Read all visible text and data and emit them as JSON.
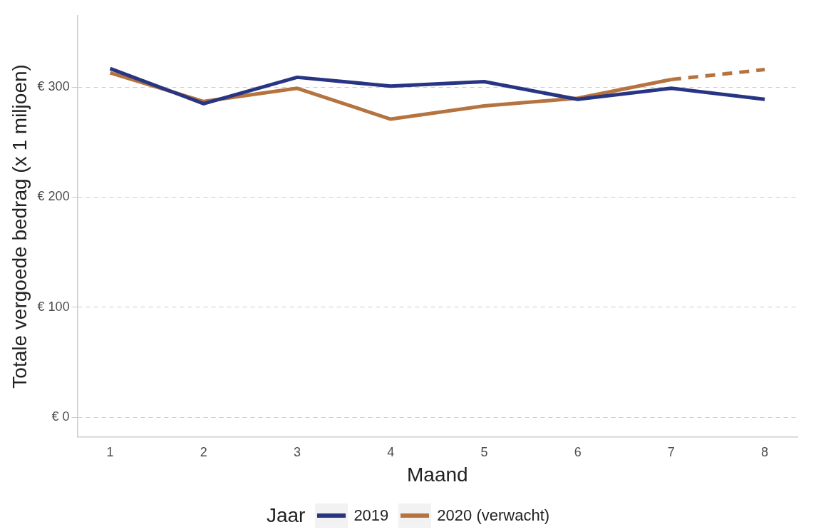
{
  "chart_data": {
    "type": "line",
    "xlabel": "Maand",
    "ylabel": "Totale vergoede bedrag (x 1 miljoen)",
    "legend_title": "Jaar",
    "legend": "bottom",
    "grid": "y",
    "marker": "none",
    "x": [
      1,
      2,
      3,
      4,
      5,
      6,
      7,
      8
    ],
    "xlim": [
      0.65,
      8.35
    ],
    "xticks": [
      1,
      2,
      3,
      4,
      5,
      6,
      7,
      8
    ],
    "ylim": [
      -18,
      365
    ],
    "yticks": [
      {
        "value": 0,
        "label": "€ 0"
      },
      {
        "value": 100,
        "label": "€ 100"
      },
      {
        "value": 200,
        "label": "€ 200"
      },
      {
        "value": 300,
        "label": "€ 300"
      }
    ],
    "series": [
      {
        "name": "2019",
        "color": "#283583",
        "line_style": "solid",
        "values": [
          317,
          285,
          309,
          301,
          305,
          289,
          299,
          289
        ]
      },
      {
        "name": "2020 (verwacht)",
        "color": "#b5733f",
        "line_style": "solid",
        "values": [
          313,
          287,
          299,
          271,
          283,
          290,
          307,
          null
        ]
      },
      {
        "color": "#b5733f",
        "line_style": "dashed",
        "values": [
          null,
          null,
          null,
          null,
          null,
          null,
          307,
          316
        ]
      }
    ]
  }
}
